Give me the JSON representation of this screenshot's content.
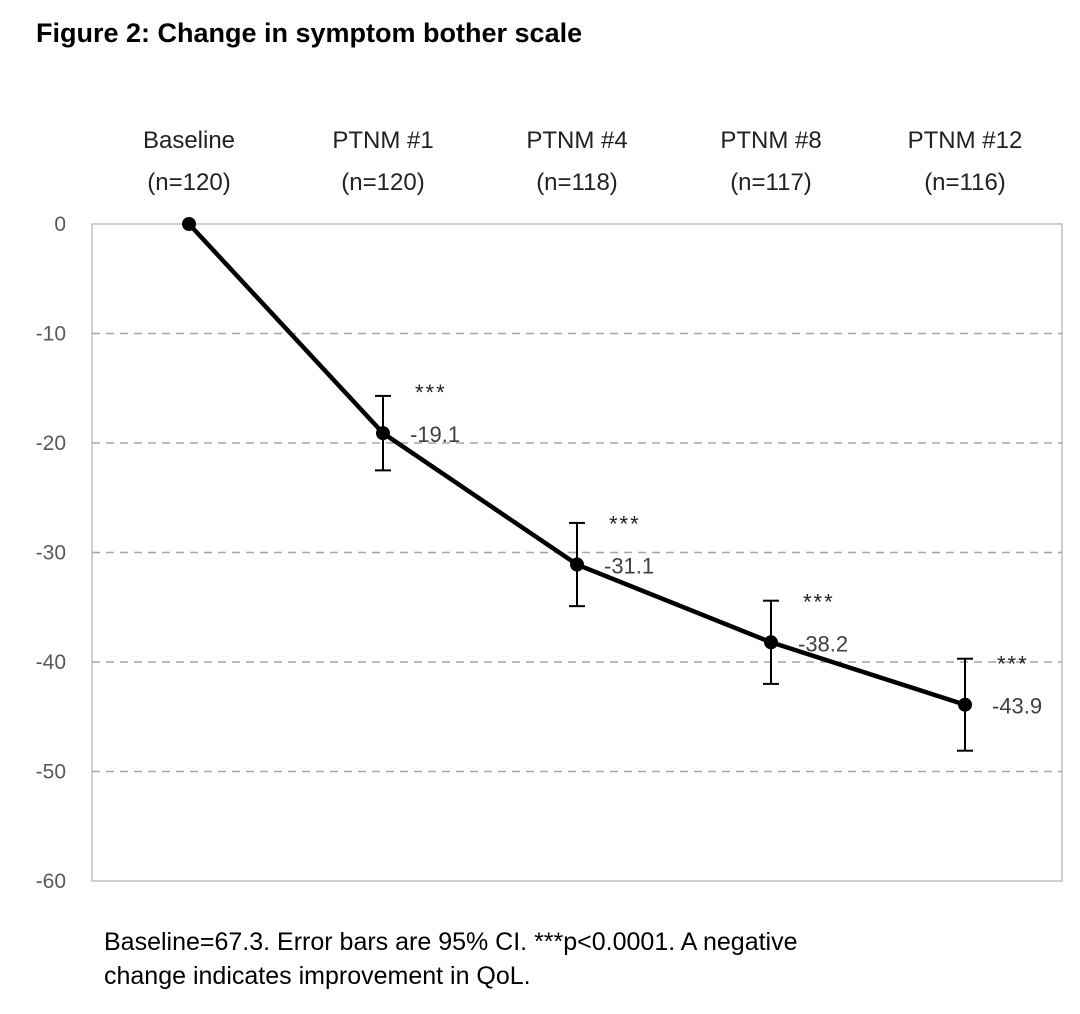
{
  "figure": {
    "title": "Figure 2: Change in symptom bother scale",
    "caption_line1": "Baseline=67.3. Error bars are 95% CI. ***p<0.0001. A negative",
    "caption_line2": "change indicates improvement  in QoL."
  },
  "chart_data": {
    "type": "line",
    "categories": [
      {
        "name": "Baseline",
        "n": "(n=120)"
      },
      {
        "name": "PTNM #1",
        "n": "(n=120)"
      },
      {
        "name": "PTNM #4",
        "n": "(n=118)"
      },
      {
        "name": "PTNM #8",
        "n": "(n=117)"
      },
      {
        "name": "PTNM #12",
        "n": "(n=116)"
      }
    ],
    "values": [
      0,
      -19.1,
      -31.1,
      -38.2,
      -43.9
    ],
    "value_labels": [
      "",
      "-19.1",
      "-31.1",
      "-38.2",
      "-43.9"
    ],
    "significance": [
      "",
      "***",
      "***",
      "***",
      "***"
    ],
    "ci_upper": [
      0,
      -15.7,
      -27.3,
      -34.4,
      -39.7
    ],
    "ci_lower": [
      0,
      -22.5,
      -34.9,
      -42.0,
      -48.1
    ],
    "ylim": [
      -60,
      0
    ],
    "yticks": [
      0,
      -10,
      -20,
      -30,
      -40,
      -50,
      -60
    ],
    "ytick_labels": [
      "0",
      "-10",
      "-20",
      "-30",
      "-40",
      "-50",
      "-60"
    ],
    "grid": "dashed horizontal",
    "x_axis_position": "top",
    "line_color": "#000000",
    "grid_color": "#a6a6a6"
  }
}
